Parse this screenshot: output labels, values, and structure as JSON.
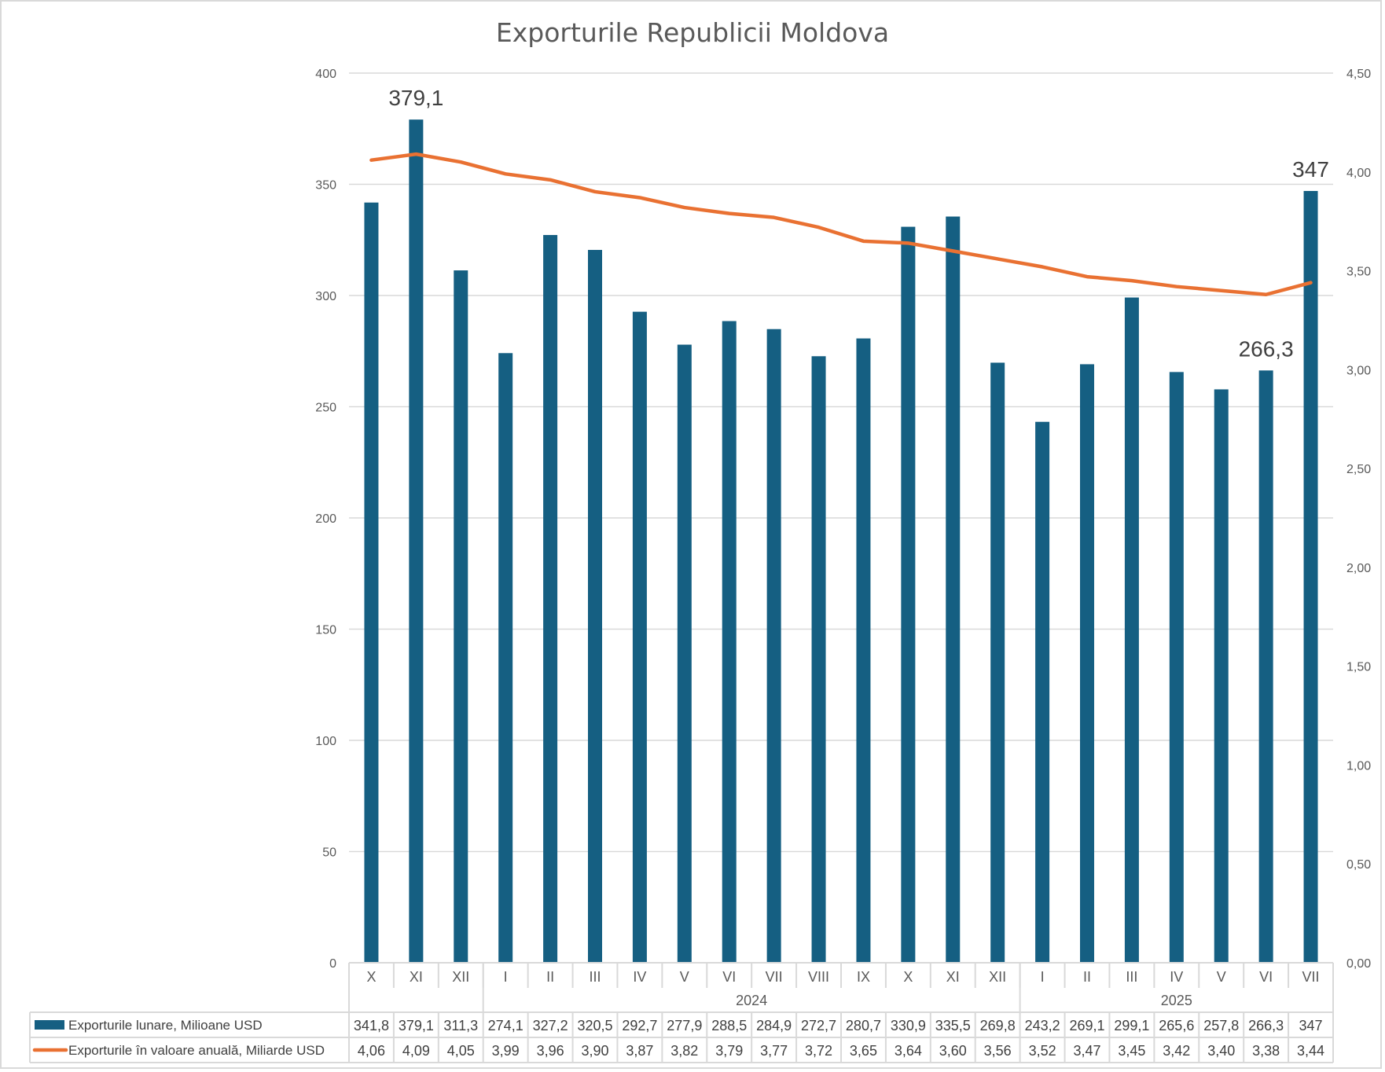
{
  "chart_data": {
    "type": "bar",
    "title": "Exporturile Republicii Moldova",
    "xlabel": "",
    "ylabel": "",
    "grid": true,
    "legend_placement": "bottom-table",
    "categories": [
      "X",
      "XI",
      "XII",
      "I",
      "II",
      "III",
      "IV",
      "V",
      "VI",
      "VII",
      "VIII",
      "IX",
      "X",
      "XI",
      "XII",
      "I",
      "II",
      "III",
      "IV",
      "V",
      "VI",
      "VII"
    ],
    "category_groups": [
      {
        "label": "",
        "count": 3
      },
      {
        "label": "2024",
        "count": 12
      },
      {
        "label": "2025",
        "count": 7
      }
    ],
    "y_left": {
      "ylim": [
        0,
        400
      ],
      "ticks": [
        "0",
        "50",
        "100",
        "150",
        "200",
        "250",
        "300",
        "350",
        "400"
      ]
    },
    "y_right": {
      "ylim": [
        0,
        4.5
      ],
      "ticks": [
        "0,00",
        "0,50",
        "1,00",
        "1,50",
        "2,00",
        "2,50",
        "3,00",
        "3,50",
        "4,00",
        "4,50"
      ]
    },
    "series": [
      {
        "name": "Exporturile lunare, Milioane USD",
        "type": "bar",
        "axis": "left",
        "color": "#155F82",
        "values": [
          341.8,
          379.1,
          311.3,
          274.1,
          327.2,
          320.5,
          292.7,
          277.9,
          288.5,
          284.9,
          272.7,
          280.7,
          330.9,
          335.5,
          269.8,
          243.2,
          269.1,
          299.1,
          265.6,
          257.8,
          266.3,
          347
        ],
        "labels": [
          "341,8",
          "379,1",
          "311,3",
          "274,1",
          "327,2",
          "320,5",
          "292,7",
          "277,9",
          "288,5",
          "284,9",
          "272,7",
          "280,7",
          "330,9",
          "335,5",
          "269,8",
          "243,2",
          "269,1",
          "299,1",
          "265,6",
          "257,8",
          "266,3",
          "347"
        ]
      },
      {
        "name": "Exporturile în valoare anuală, Miliarde USD",
        "type": "line",
        "axis": "right",
        "color": "#E97132",
        "values": [
          4.06,
          4.09,
          4.05,
          3.99,
          3.96,
          3.9,
          3.87,
          3.82,
          3.79,
          3.77,
          3.72,
          3.65,
          3.64,
          3.6,
          3.56,
          3.52,
          3.47,
          3.45,
          3.42,
          3.4,
          3.38,
          3.44
        ],
        "labels": [
          "4,06",
          "4,09",
          "4,05",
          "3,99",
          "3,96",
          "3,90",
          "3,87",
          "3,82",
          "3,79",
          "3,77",
          "3,72",
          "3,65",
          "3,64",
          "3,60",
          "3,56",
          "3,52",
          "3,47",
          "3,45",
          "3,42",
          "3,40",
          "3,38",
          "3,44"
        ]
      }
    ],
    "annotations": [
      {
        "series": 0,
        "index": 1,
        "text": "379,1"
      },
      {
        "series": 0,
        "index": 20,
        "text": "266,3"
      },
      {
        "series": 0,
        "index": 21,
        "text": "347"
      }
    ],
    "colors": {
      "gridline": "#D9D9D9",
      "text": "#595959",
      "table_border": "#D9D9D9"
    }
  }
}
